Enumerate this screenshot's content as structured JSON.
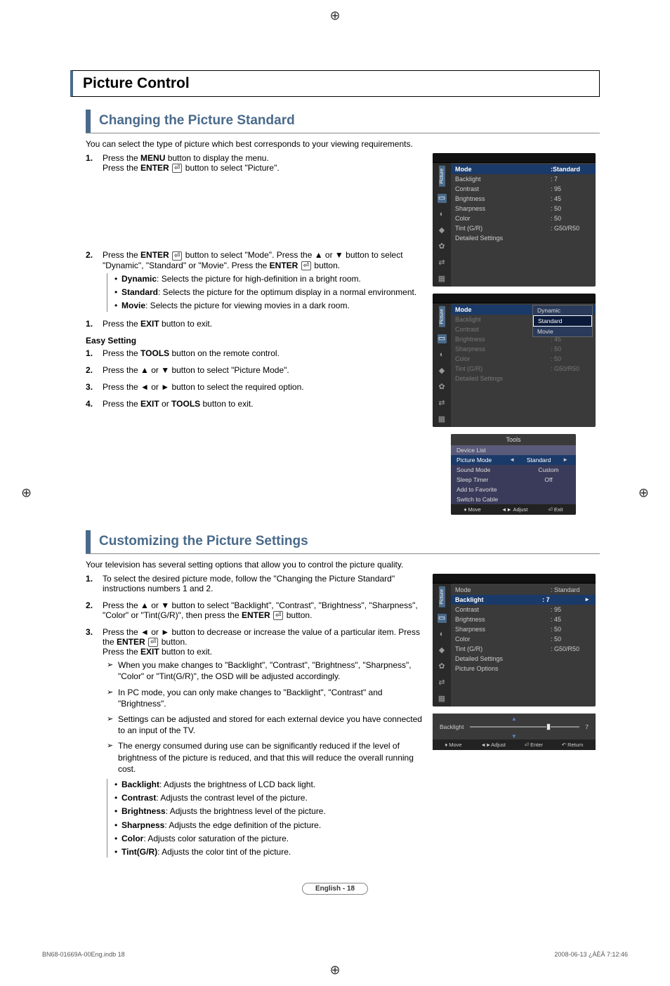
{
  "colors": {
    "accent": "#4a6a8a",
    "osd_bg": "#3a3a3a",
    "osd_highlight": "#1a3a6a",
    "text": "#000000"
  },
  "section_title": "Picture Control",
  "s1": {
    "title": "Changing the Picture Standard",
    "intro": "You can select the type of picture which best corresponds to your viewing requirements.",
    "step1a": "Press the ",
    "step1a_b": "MENU",
    "step1a_c": " button to display the menu.",
    "step1b": "Press the ",
    "step1b_b": "ENTER",
    "step1b_c": " button to select \"Picture\".",
    "step2a": "Press the ",
    "step2a_b": "ENTER",
    "step2a_c": " button to select \"Mode\". Press the ▲ or ▼ button to select \"Dynamic\", \"Standard\" or \"Movie\". Press the ",
    "step2a_d": "ENTER",
    "step2a_e": " button.",
    "opt1_b": "Dynamic",
    "opt1_t": ": Selects the picture for high-definition in a bright room.",
    "opt2_b": "Standard",
    "opt2_t": ": Selects the picture for the optimum display in a normal environment.",
    "opt3_b": "Movie",
    "opt3_t": ": Selects the picture for viewing movies in a dark room.",
    "step3a": "Press the ",
    "step3a_b": "EXIT",
    "step3a_c": " button to exit.",
    "easy_title": "Easy Setting",
    "e1a": "Press the ",
    "e1b": "TOOLS",
    "e1c": " button on the remote control.",
    "e2": "Press the ▲ or ▼ button to select \"Picture Mode\".",
    "e3": "Press the ◄ or ► button to select the required option.",
    "e4a": "Press the ",
    "e4b": "EXIT",
    "e4c": " or ",
    "e4d": "TOOLS",
    "e4e": " button to exit."
  },
  "osd1": {
    "side_label": "Picture",
    "rows": [
      {
        "k": "Mode",
        "v": ":Standard",
        "hdr": true
      },
      {
        "k": "Backlight",
        "v": ": 7"
      },
      {
        "k": "Contrast",
        "v": ": 95"
      },
      {
        "k": "Brightness",
        "v": ": 45"
      },
      {
        "k": "Sharpness",
        "v": ": 50"
      },
      {
        "k": "Color",
        "v": ": 50"
      },
      {
        "k": "Tint (G/R)",
        "v": ": G50/R50"
      },
      {
        "k": "Detailed Settings",
        "v": ""
      }
    ]
  },
  "osd2": {
    "side_label": "Picture",
    "rows": [
      {
        "k": "Mode",
        "v": "",
        "hdr": true
      },
      {
        "k": "Backlight",
        "v": "",
        "dim": true
      },
      {
        "k": "Contrast",
        "v": "",
        "dim": true
      },
      {
        "k": "Brightness",
        "v": ": 45",
        "dim": true
      },
      {
        "k": "Sharpness",
        "v": ": 50",
        "dim": true
      },
      {
        "k": "Color",
        "v": ": 50",
        "dim": true
      },
      {
        "k": "Tint (G/R)",
        "v": ": G50/R50",
        "dim": true
      },
      {
        "k": "Detailed Settings",
        "v": "",
        "dim": true
      }
    ],
    "popup": [
      "Dynamic",
      "Standard",
      "Movie"
    ],
    "popup_sel": 1
  },
  "tools": {
    "title": "Tools",
    "rows": [
      {
        "k": "Device List",
        "v": "",
        "dv": true
      },
      {
        "k": "Picture Mode",
        "v": "Standard",
        "hi": true,
        "arrows": true
      },
      {
        "k": "Sound Mode",
        "v": "Custom"
      },
      {
        "k": "Sleep Timer",
        "v": "Off"
      },
      {
        "k": "Add to Favorite",
        "v": ""
      },
      {
        "k": "Switch to Cable",
        "v": ""
      }
    ],
    "foot": [
      "♦ Move",
      "◄► Adjust",
      "⏎ Exit"
    ]
  },
  "s2": {
    "title": "Customizing the Picture Settings",
    "intro": "Your television has several setting options that allow you to control the picture quality.",
    "step1": "To select the desired picture mode, follow the \"Changing the Picture Standard\" instructions numbers 1 and 2.",
    "step2a": "Press the ▲ or ▼ button to select \"Backlight\", \"Contrast\", \"Brightness\", \"Sharpness\", \"Color\" or \"Tint(G/R)\", then press the ",
    "step2b": "ENTER",
    "step2c": " button.",
    "step3a": "Press the ◄ or ► button to decrease or increase the value of a particular item. Press the ",
    "step3b": "ENTER",
    "step3c": " button.",
    "step3d": "Press the ",
    "step3e": "EXIT",
    "step3f": " button to exit.",
    "n1": "When you make changes to \"Backlight\", \"Contrast\", \"Brightness\", \"Sharpness\", \"Color\" or \"Tint(G/R)\", the OSD will be adjusted accordingly.",
    "n2": "In PC mode, you can only make changes to \"Backlight\", \"Contrast\" and \"Brightness\".",
    "n3": "Settings can be adjusted and stored for each external device you have connected to an input of the TV.",
    "n4": "The energy consumed during use can be significantly reduced if the level of brightness of the picture is reduced, and that this will reduce the overall running cost.",
    "d1b": "Backlight",
    "d1t": ": Adjusts the brightness of LCD back light.",
    "d2b": "Contrast",
    "d2t": ": Adjusts the contrast level of the picture.",
    "d3b": "Brightness",
    "d3t": ": Adjusts the brightness level of the picture.",
    "d4b": "Sharpness",
    "d4t": ": Adjusts the edge definition of the picture.",
    "d5b": "Color",
    "d5t": ": Adjusts color saturation of the picture.",
    "d6b": "Tint(G/R)",
    "d6t": ": Adjusts the color tint of the picture."
  },
  "osd3": {
    "side_label": "Picture",
    "rows": [
      {
        "k": "Mode",
        "v": ": Standard"
      },
      {
        "k": "Backlight",
        "v": ": 7",
        "hdr": true,
        "arrow_r": true
      },
      {
        "k": "Contrast",
        "v": ": 95"
      },
      {
        "k": "Brightness",
        "v": ": 45"
      },
      {
        "k": "Sharpness",
        "v": ": 50"
      },
      {
        "k": "Color",
        "v": ": 50"
      },
      {
        "k": "Tint (G/R)",
        "v": ": G50/R50"
      },
      {
        "k": "Detailed Settings",
        "v": ""
      },
      {
        "k": "Picture Options",
        "v": ""
      }
    ]
  },
  "slider": {
    "label": "Backlight",
    "value": "7",
    "percent": 70,
    "foot": [
      "♦ Move",
      "◄►Adjust",
      "⏎ Enter",
      "↶ Return"
    ]
  },
  "page_label": "English - 18",
  "footer_left": "BN68-01669A-00Eng.indb   18",
  "footer_right": "2008-06-13   ¿ÀÈÄ 7:12:46"
}
